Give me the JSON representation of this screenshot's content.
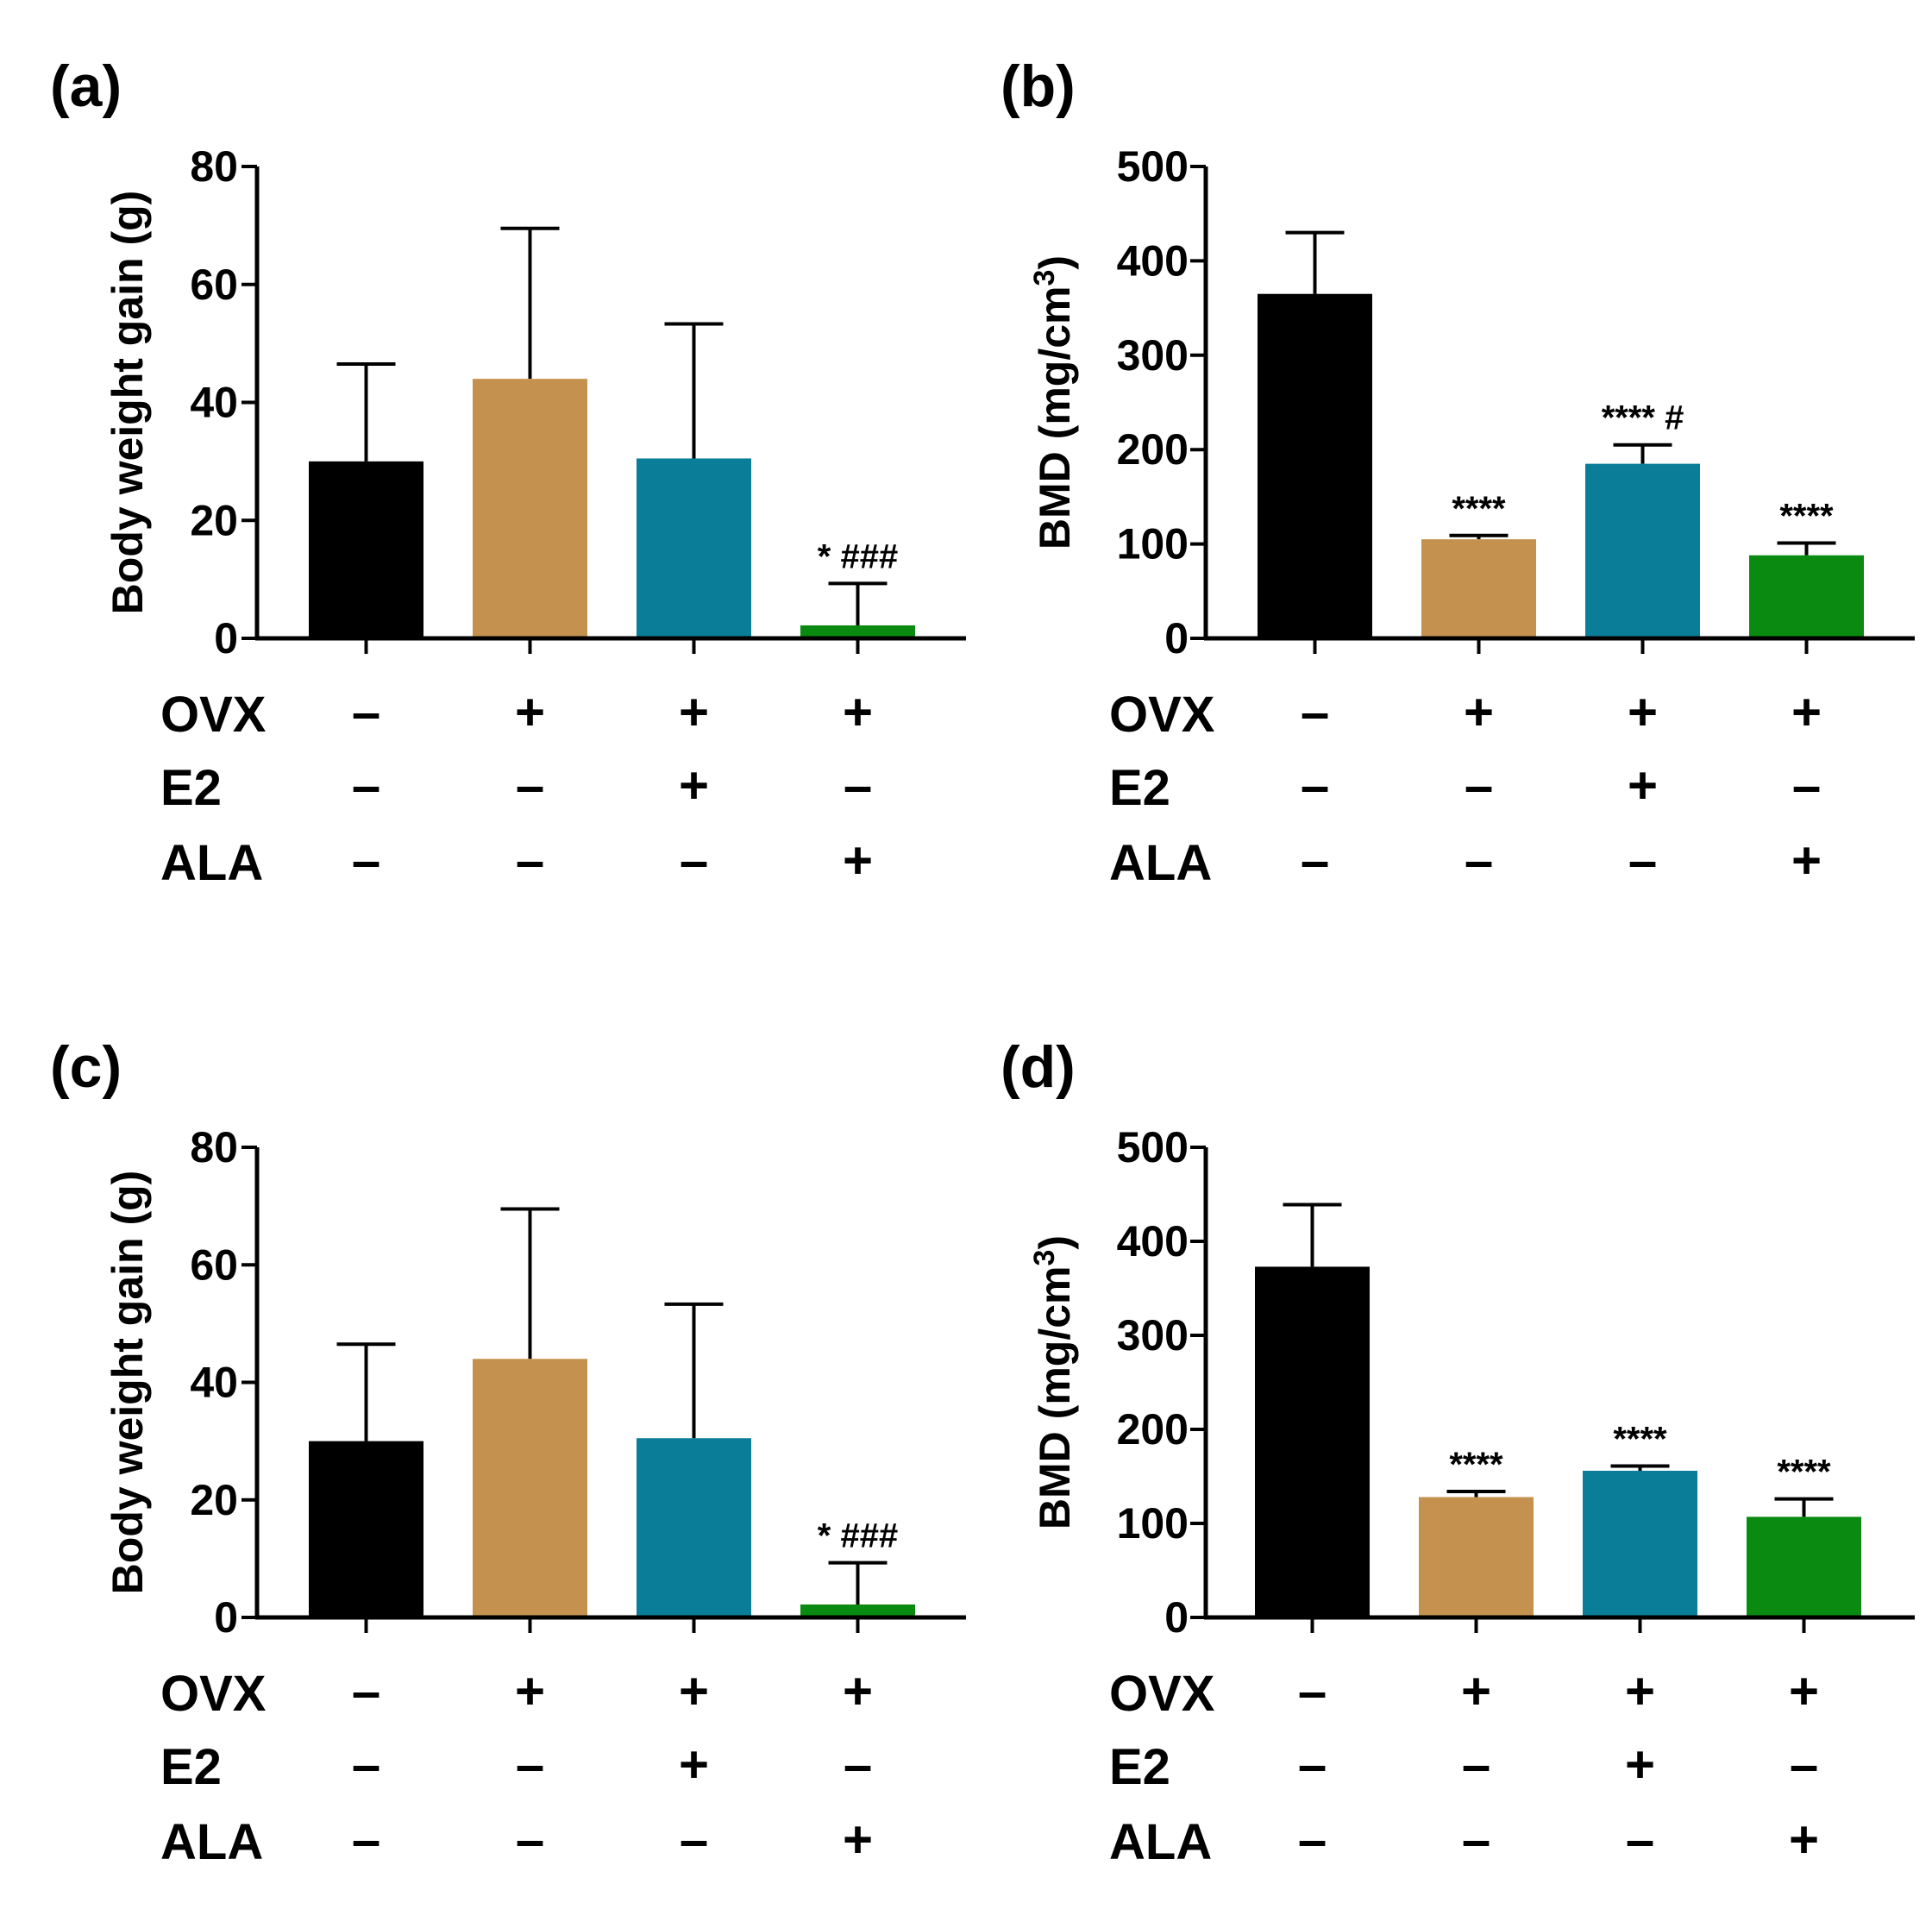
{
  "colors": {
    "control": "#000000",
    "ovx": "#C4924E",
    "e2": "#0A7E99",
    "ala": "#0A8A10",
    "axis": "#000000"
  },
  "row_labels": [
    "OVX",
    "E2",
    "ALA"
  ],
  "treatment_matrix": [
    [
      "–",
      "+",
      "+",
      "+"
    ],
    [
      "–",
      "–",
      "+",
      "–"
    ],
    [
      "–",
      "–",
      "–",
      "+"
    ]
  ],
  "chart_data": [
    {
      "panel": "(a)",
      "type": "bar",
      "categories": [
        "Control",
        "OVX",
        "OVX+E2",
        "OVX+ALA"
      ],
      "values": [
        30,
        44,
        30.5,
        2.2
      ],
      "errors": [
        16.5,
        25.5,
        22.8,
        7.1
      ],
      "annotations": [
        "",
        "",
        "",
        "* ###"
      ],
      "ylabel": "Body weight gain (g)",
      "ylabel_super": "",
      "ylabel_tail": "",
      "ylim": [
        0,
        80
      ],
      "yticks": [
        0,
        20,
        40,
        60,
        80
      ]
    },
    {
      "panel": "(b)",
      "type": "bar",
      "categories": [
        "Control",
        "OVX",
        "OVX+E2",
        "OVX+ALA"
      ],
      "values": [
        365,
        105,
        185,
        88
      ],
      "errors": [
        65,
        4,
        20,
        13
      ],
      "annotations": [
        "",
        "****",
        "**** #",
        "****"
      ],
      "ylabel": "BMD (mg/cm",
      "ylabel_super": "3",
      "ylabel_tail": ")",
      "ylim": [
        0,
        500
      ],
      "yticks": [
        0,
        100,
        200,
        300,
        400,
        500
      ]
    },
    {
      "panel": "(c)",
      "type": "bar",
      "categories": [
        "Control",
        "OVX",
        "OVX+E2",
        "OVX+ALA"
      ],
      "values": [
        30,
        44,
        30.5,
        2.2
      ],
      "errors": [
        16.5,
        25.5,
        22.8,
        7.1
      ],
      "annotations": [
        "",
        "",
        "",
        "* ###"
      ],
      "ylabel": "Body weight gain (g)",
      "ylabel_super": "",
      "ylabel_tail": "",
      "ylim": [
        0,
        80
      ],
      "yticks": [
        0,
        20,
        40,
        60,
        80
      ]
    },
    {
      "panel": "(d)",
      "type": "bar",
      "categories": [
        "Control",
        "OVX",
        "OVX+E2",
        "OVX+ALA"
      ],
      "values": [
        373,
        128,
        156,
        107
      ],
      "errors": [
        66,
        6,
        5,
        19
      ],
      "annotations": [
        "",
        "****",
        "****",
        "****"
      ],
      "ylabel": "BMD (mg/cm",
      "ylabel_super": "3",
      "ylabel_tail": ")",
      "ylim": [
        0,
        500
      ],
      "yticks": [
        0,
        100,
        200,
        300,
        400,
        500
      ]
    }
  ]
}
